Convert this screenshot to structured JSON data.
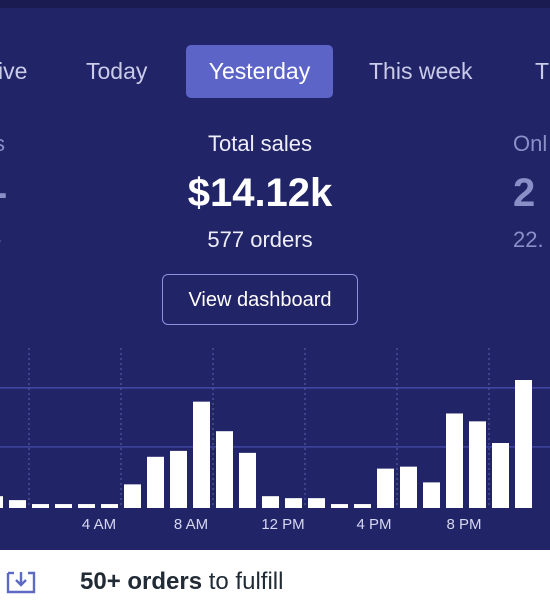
{
  "tabs": [
    {
      "label": "ive"
    },
    {
      "label": "Today"
    },
    {
      "label": "Yesterday",
      "active": true
    },
    {
      "label": "This week"
    },
    {
      "label": "T"
    }
  ],
  "metrics": {
    "left": {
      "label": "s",
      "value": "-",
      "sub": "-"
    },
    "center": {
      "label": "Total sales",
      "value": "$14.12k",
      "sub": "577 orders"
    },
    "right": {
      "label": "Onl",
      "value": "2",
      "sub": "22."
    }
  },
  "dashboard_button": "View dashboard",
  "chart_data": {
    "type": "bar",
    "x_tick_labels": [
      "4 AM",
      "8 AM",
      "12 PM",
      "4 PM",
      "8 PM"
    ],
    "values": [
      0.6,
      0.4,
      0.2,
      0.2,
      0.2,
      0.2,
      1.2,
      2.6,
      2.9,
      5.4,
      3.9,
      2.8,
      0.6,
      0.5,
      0.5,
      0.2,
      0.2,
      2.0,
      2.1,
      1.3,
      4.8,
      4.4,
      3.3,
      6.5
    ],
    "gridlines": [
      3.1,
      6.1
    ],
    "ylim": [
      0,
      6.5
    ],
    "colors": {
      "bar": "#ffffff",
      "grid": "#4b51b3",
      "divider": "#5e63a8"
    }
  },
  "todo": {
    "count": "50+ orders",
    "rest": " to fulfill",
    "icon": "inbox-download-icon"
  },
  "colors": {
    "panel": "#222468",
    "active_tab": "#5d64c8"
  }
}
